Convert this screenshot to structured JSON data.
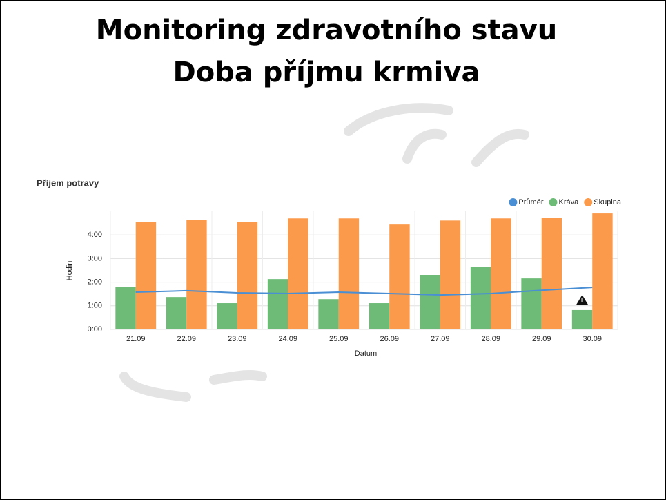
{
  "slide": {
    "title": "Monitoring zdravotního stavu",
    "subtitle": "Doba příjmu krmiva"
  },
  "chart_data": {
    "type": "bar",
    "title": "Příjem potravy",
    "x_label": "Datum",
    "y_label": "Hodin",
    "categories": [
      "21.09",
      "22.09",
      "23.09",
      "24.09",
      "25.09",
      "26.09",
      "27.09",
      "28.09",
      "29.09",
      "30.09"
    ],
    "series": [
      {
        "name": "Průměr",
        "color": "#4a8fd4",
        "type": "line",
        "values": [
          1.58,
          1.64,
          1.55,
          1.52,
          1.58,
          1.52,
          1.46,
          1.52,
          1.66,
          1.78
        ]
      },
      {
        "name": "Kráva",
        "color": "#6dbb77",
        "type": "bar",
        "values": [
          1.81,
          1.37,
          1.11,
          2.13,
          1.28,
          1.11,
          2.31,
          2.66,
          2.16,
          0.82
        ]
      },
      {
        "name": "Skupina",
        "color": "#fb9a4b",
        "type": "bar",
        "values": [
          4.55,
          4.64,
          4.55,
          4.7,
          4.7,
          4.44,
          4.61,
          4.7,
          4.73,
          4.91
        ]
      }
    ],
    "ylim": [
      0,
      5
    ],
    "yticks": [
      {
        "value": 0,
        "label": "0:00"
      },
      {
        "value": 1,
        "label": "1:00"
      },
      {
        "value": 2,
        "label": "2:00"
      },
      {
        "value": 3,
        "label": "3:00"
      },
      {
        "value": 4,
        "label": "4:00"
      }
    ],
    "grid": true,
    "legend": "top-right"
  }
}
